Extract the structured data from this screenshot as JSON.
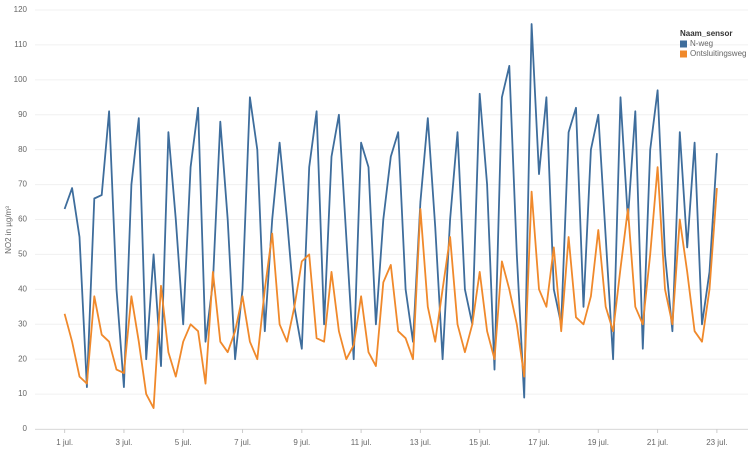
{
  "chart_data": {
    "type": "line",
    "y_label": "NO2 in µg/m³",
    "legend_title": "Naam_sensor",
    "legend": "top-right",
    "grid": true,
    "x": [
      1,
      1.25,
      1.5,
      1.75,
      2,
      2.25,
      2.5,
      2.75,
      3,
      3.25,
      3.5,
      3.75,
      4,
      4.25,
      4.5,
      4.75,
      5,
      5.25,
      5.5,
      5.75,
      6,
      6.25,
      6.5,
      6.75,
      7,
      7.25,
      7.5,
      7.75,
      8,
      8.25,
      8.5,
      8.75,
      9,
      9.25,
      9.5,
      9.75,
      10,
      10.25,
      10.5,
      10.75,
      11,
      11.25,
      11.5,
      11.75,
      12,
      12.25,
      12.5,
      12.75,
      13,
      13.25,
      13.5,
      13.75,
      14,
      14.25,
      14.5,
      14.75,
      15,
      15.25,
      15.5,
      15.75,
      16,
      16.25,
      16.5,
      16.75,
      17,
      17.25,
      17.5,
      17.75,
      18,
      18.25,
      18.5,
      18.75,
      19,
      19.25,
      19.5,
      19.75,
      20,
      20.25,
      20.5,
      20.75,
      21,
      21.25,
      21.5,
      21.75,
      22,
      22.25,
      22.5,
      22.75,
      23
    ],
    "series": [
      {
        "name": "N-weg",
        "color": "#3e6d9c",
        "values": [
          63,
          69,
          55,
          12,
          66,
          67,
          91,
          40,
          12,
          70,
          89,
          20,
          50,
          18,
          85,
          60,
          30,
          75,
          92,
          25,
          42,
          88,
          60,
          20,
          40,
          95,
          80,
          28,
          60,
          82,
          60,
          35,
          23,
          75,
          91,
          30,
          78,
          90,
          55,
          20,
          82,
          75,
          30,
          60,
          78,
          85,
          40,
          25,
          65,
          89,
          58,
          20,
          60,
          85,
          40,
          30,
          96,
          70,
          17,
          95,
          104,
          50,
          9,
          116,
          73,
          95,
          40,
          30,
          85,
          92,
          35,
          80,
          90,
          55,
          20,
          95,
          60,
          91,
          23,
          80,
          97,
          50,
          28,
          85,
          52,
          82,
          30,
          45,
          79
        ]
      },
      {
        "name": "Ontsluitingsweg",
        "color": "#f0892b",
        "values": [
          33,
          25,
          15,
          13,
          38,
          27,
          25,
          17,
          16,
          38,
          25,
          10,
          6,
          41,
          22,
          15,
          25,
          30,
          28,
          13,
          45,
          25,
          22,
          28,
          38,
          25,
          20,
          40,
          56,
          30,
          25,
          35,
          48,
          50,
          26,
          25,
          45,
          28,
          20,
          24,
          38,
          22,
          18,
          42,
          47,
          28,
          26,
          20,
          63,
          35,
          25,
          40,
          55,
          30,
          22,
          30,
          45,
          28,
          20,
          48,
          40,
          30,
          15,
          68,
          40,
          35,
          52,
          28,
          55,
          32,
          30,
          38,
          57,
          35,
          28,
          46,
          63,
          35,
          30,
          50,
          75,
          40,
          30,
          60,
          45,
          28,
          25,
          40,
          69
        ]
      }
    ],
    "xlim": [
      0,
      24.05
    ],
    "xticks": [
      {
        "value": 1,
        "label": "1 jul."
      },
      {
        "value": 3,
        "label": "3 jul."
      },
      {
        "value": 5,
        "label": "5 jul."
      },
      {
        "value": 7,
        "label": "7 jul."
      },
      {
        "value": 9,
        "label": "9 jul."
      },
      {
        "value": 11,
        "label": "11 jul."
      },
      {
        "value": 13,
        "label": "13 jul."
      },
      {
        "value": 15,
        "label": "15 jul."
      },
      {
        "value": 17,
        "label": "17 jul."
      },
      {
        "value": 19,
        "label": "19 jul."
      },
      {
        "value": 21,
        "label": "21 jul."
      },
      {
        "value": 23,
        "label": "23 jul."
      }
    ],
    "ylim": [
      0,
      120
    ],
    "yticks": [
      0,
      10,
      20,
      30,
      40,
      50,
      60,
      70,
      80,
      90,
      100,
      110,
      120
    ]
  }
}
